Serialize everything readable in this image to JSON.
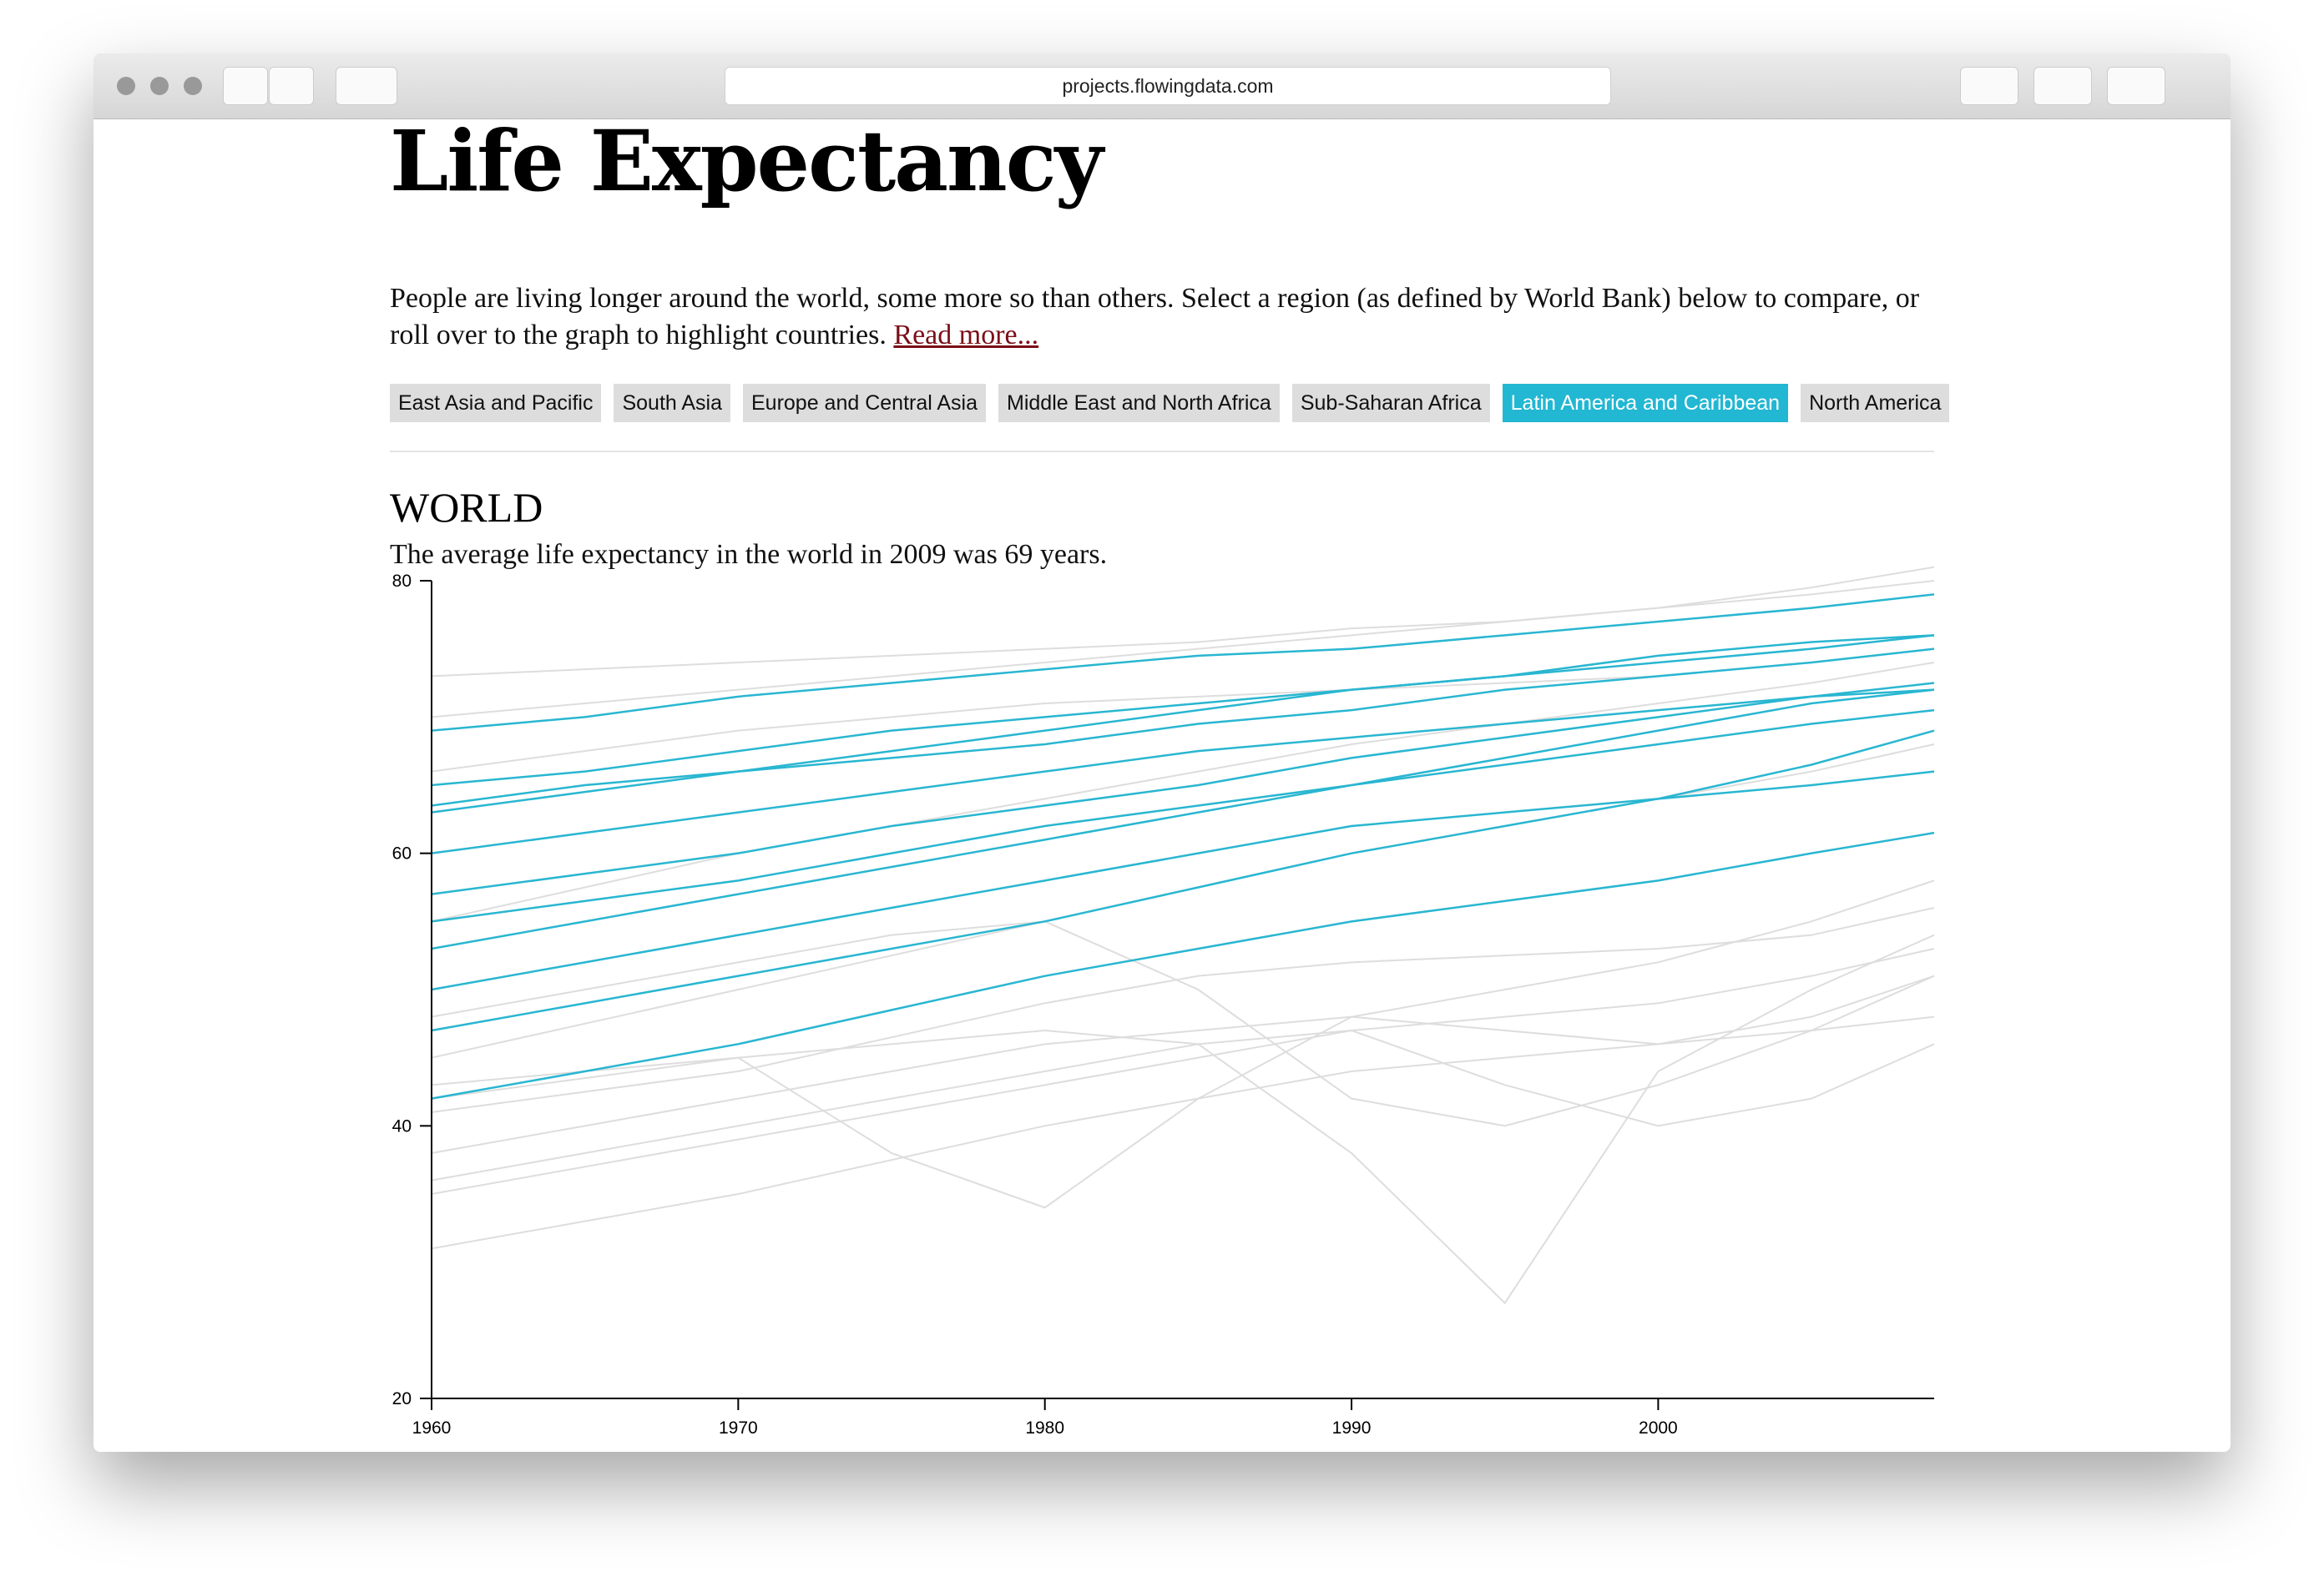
{
  "browser": {
    "url": "projects.flowingdata.com"
  },
  "header": {
    "title": "Life Expectancy",
    "intro": "People are living longer around the world, some more so than others. Select a region (as defined by World Bank) below to compare, or roll over to the graph to highlight countries.",
    "read_more": "Read more..."
  },
  "regions": [
    {
      "label": "East Asia and Pacific",
      "active": false
    },
    {
      "label": "South Asia",
      "active": false
    },
    {
      "label": "Europe and Central Asia",
      "active": false
    },
    {
      "label": "Middle East and North Africa",
      "active": false
    },
    {
      "label": "Sub-Saharan Africa",
      "active": false
    },
    {
      "label": "Latin America and Caribbean",
      "active": true
    },
    {
      "label": "North America",
      "active": false
    }
  ],
  "section": {
    "title": "WORLD",
    "subtitle": "The average life expectancy in the world in 2009 was 69 years."
  },
  "chart_data": {
    "type": "line",
    "x": [
      1960,
      1965,
      1970,
      1975,
      1980,
      1985,
      1990,
      1995,
      2000,
      2005,
      2009
    ],
    "xlim": [
      1960,
      2009
    ],
    "xticks": [
      1960,
      1970,
      1980,
      1990,
      2000
    ],
    "ylim": [
      20,
      80
    ],
    "yticks": [
      20,
      40,
      60,
      80
    ],
    "series": [
      {
        "color": "#dddddd",
        "values": [
          73,
          73.5,
          74,
          74.5,
          75,
          75.5,
          76.5,
          77,
          78,
          79.5,
          81
        ]
      },
      {
        "color": "#dddddd",
        "values": [
          70,
          71,
          72,
          73,
          74,
          75,
          76,
          77,
          78,
          79,
          80
        ]
      },
      {
        "color": "#dddddd",
        "values": [
          66,
          67.5,
          69,
          70,
          71,
          71.5,
          72,
          72.5,
          73,
          74,
          75
        ]
      },
      {
        "color": "#dddddd",
        "values": [
          55,
          57.5,
          60,
          62,
          64,
          66,
          68,
          69.5,
          71,
          72.5,
          74
        ]
      },
      {
        "color": "#dddddd",
        "values": [
          45,
          47.5,
          50,
          52.5,
          55,
          57.5,
          60,
          62,
          64,
          66,
          68
        ]
      },
      {
        "color": "#dddddd",
        "values": [
          41,
          42.5,
          44,
          46.5,
          49,
          51,
          52,
          52.5,
          53,
          54,
          56
        ]
      },
      {
        "color": "#dddddd",
        "values": [
          38,
          40,
          42,
          44,
          46,
          47,
          48,
          47,
          46,
          48,
          51
        ]
      },
      {
        "color": "#dddddd",
        "values": [
          35,
          37,
          39,
          41,
          43,
          45,
          47,
          48,
          49,
          51,
          53
        ]
      },
      {
        "color": "#dddddd",
        "values": [
          31,
          33,
          35,
          37.5,
          40,
          42,
          44,
          45,
          46,
          47,
          48
        ]
      },
      {
        "color": "#dddddd",
        "values": [
          43,
          44,
          45,
          38,
          34,
          42,
          48,
          50,
          52,
          55,
          58
        ]
      },
      {
        "color": "#dddddd",
        "values": [
          42,
          43.5,
          45,
          46,
          47,
          46,
          38,
          27,
          44,
          50,
          54
        ]
      },
      {
        "color": "#dddddd",
        "values": [
          48,
          50,
          52,
          54,
          55,
          50,
          42,
          40,
          43,
          47,
          51
        ]
      },
      {
        "color": "#dddddd",
        "values": [
          36,
          38,
          40,
          42,
          44,
          46,
          47,
          43,
          40,
          42,
          46
        ]
      },
      {
        "color": "#29b6d1",
        "values": [
          69,
          70,
          71.5,
          72.5,
          73.5,
          74.5,
          75,
          76,
          77,
          78,
          79
        ]
      },
      {
        "color": "#29b6d1",
        "values": [
          63,
          64.5,
          66,
          67.5,
          69,
          70.5,
          72,
          73,
          74.5,
          75.5,
          76
        ]
      },
      {
        "color": "#29b6d1",
        "values": [
          63.5,
          65,
          66,
          67,
          68,
          69.5,
          70.5,
          72,
          73,
          74,
          75
        ]
      },
      {
        "color": "#29b6d1",
        "values": [
          57,
          58.5,
          60,
          62,
          63.5,
          65,
          67,
          68.5,
          70,
          71.5,
          72.5
        ]
      },
      {
        "color": "#29b6d1",
        "values": [
          53,
          55,
          57,
          59,
          61,
          63,
          65,
          67,
          69,
          71,
          72
        ]
      },
      {
        "color": "#29b6d1",
        "values": [
          47,
          49,
          51,
          53,
          55,
          57.5,
          60,
          62,
          64,
          66.5,
          69
        ]
      },
      {
        "color": "#29b6d1",
        "values": [
          42,
          44,
          46,
          48.5,
          51,
          53,
          55,
          56.5,
          58,
          60,
          61.5
        ]
      },
      {
        "color": "#29b6d1",
        "values": [
          60,
          61.5,
          63,
          64.5,
          66,
          67.5,
          68.5,
          69.5,
          70.5,
          71.5,
          72
        ]
      },
      {
        "color": "#29b6d1",
        "values": [
          65,
          66,
          67.5,
          69,
          70,
          71,
          72,
          73,
          74,
          75,
          76
        ]
      },
      {
        "color": "#29b6d1",
        "values": [
          55,
          56.5,
          58,
          60,
          62,
          63.5,
          65,
          66.5,
          68,
          69.5,
          70.5
        ]
      },
      {
        "color": "#29b6d1",
        "values": [
          50,
          52,
          54,
          56,
          58,
          60,
          62,
          63,
          64,
          65,
          66
        ]
      }
    ]
  }
}
